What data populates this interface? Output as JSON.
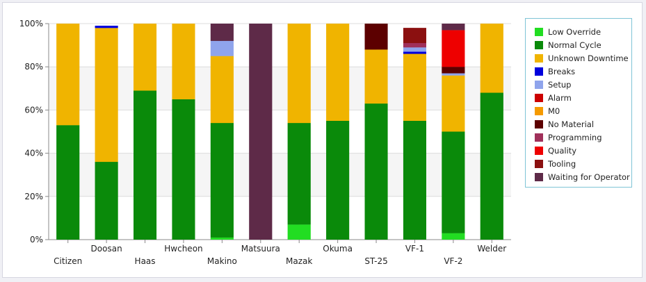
{
  "chart_data": {
    "type": "bar",
    "stacked": true,
    "categories": [
      "Citizen",
      "Doosan",
      "Haas",
      "Hwcheon",
      "Makino",
      "Matsuura",
      "Mazak",
      "Okuma",
      "ST-25",
      "VF-1",
      "VF-2",
      "Welder"
    ],
    "ylim": [
      0,
      100
    ],
    "y_ticks": [
      "0%",
      "20%",
      "40%",
      "60%",
      "80%",
      "100%"
    ],
    "grid": true,
    "legend_position": "right",
    "series": [
      {
        "name": "Low Override",
        "color": "#22dd22",
        "values": [
          0,
          0,
          0,
          0,
          1,
          0,
          7,
          0,
          0,
          0,
          3,
          0
        ]
      },
      {
        "name": "Normal Cycle",
        "color": "#0a8a0a",
        "values": [
          53,
          36,
          69,
          65,
          53,
          0,
          47,
          55,
          63,
          55,
          47,
          68
        ]
      },
      {
        "name": "Unknown Downtime",
        "color": "#f0b400",
        "values": [
          47,
          62,
          31,
          35,
          31,
          0,
          46,
          45,
          25,
          31,
          26,
          32
        ]
      },
      {
        "name": "Breaks",
        "color": "#0000dd",
        "values": [
          0,
          1,
          0,
          0,
          0,
          0,
          0,
          0,
          0,
          1,
          0,
          0
        ]
      },
      {
        "name": "Setup",
        "color": "#8fa4ec",
        "values": [
          0,
          0,
          0,
          0,
          7,
          0,
          0,
          0,
          0,
          2,
          1,
          0
        ]
      },
      {
        "name": "Alarm",
        "color": "#cc0000",
        "values": [
          0,
          0,
          0,
          0,
          0,
          0,
          0,
          0,
          0,
          0,
          0,
          0
        ]
      },
      {
        "name": "M0",
        "color": "#f59a00",
        "values": [
          0,
          0,
          0,
          0,
          0,
          0,
          0,
          0,
          0,
          0,
          0,
          0
        ]
      },
      {
        "name": "No Material",
        "color": "#5c0000",
        "values": [
          0,
          0,
          0,
          0,
          0,
          0,
          0,
          0,
          12,
          0,
          3,
          0
        ]
      },
      {
        "name": "Programming",
        "color": "#a0305a",
        "values": [
          0,
          0,
          0,
          0,
          0,
          0,
          0,
          0,
          0,
          2,
          0,
          0
        ]
      },
      {
        "name": "Quality",
        "color": "#ee0000",
        "values": [
          0,
          0,
          0,
          0,
          0,
          0,
          0,
          0,
          0,
          0,
          17,
          0
        ]
      },
      {
        "name": "Tooling",
        "color": "#8b1010",
        "values": [
          0,
          0,
          0,
          0,
          0,
          0,
          0,
          0,
          0,
          7,
          0,
          0
        ]
      },
      {
        "name": "Waiting for Operator",
        "color": "#5e2a48",
        "values": [
          0,
          0,
          0,
          0,
          8,
          100,
          0,
          0,
          0,
          0,
          3,
          0
        ]
      }
    ]
  }
}
